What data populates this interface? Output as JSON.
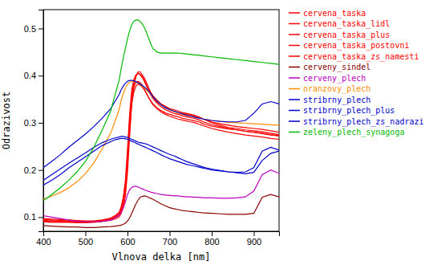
{
  "chart_data": {
    "type": "line",
    "xlabel": "Vlnova delka [nm]",
    "ylabel": "Odrazivost",
    "xlim": [
      400,
      960
    ],
    "ylim": [
      0.07,
      0.54
    ],
    "xticks": [
      400,
      500,
      600,
      700,
      800,
      900
    ],
    "yticks": [
      0.1,
      0.2,
      0.3,
      0.4,
      0.5
    ],
    "grid": false,
    "legend": "right",
    "x": [
      400,
      420,
      440,
      460,
      480,
      500,
      520,
      540,
      560,
      570,
      580,
      585,
      590,
      595,
      600,
      605,
      610,
      615,
      620,
      625,
      630,
      635,
      640,
      645,
      650,
      655,
      660,
      670,
      680,
      690,
      700,
      710,
      720,
      730,
      740,
      750,
      760,
      770,
      780,
      800,
      820,
      840,
      860,
      880,
      900,
      920,
      940,
      960
    ],
    "series": [
      {
        "name": "cervena_taska",
        "color": "#ff0000",
        "values": [
          0.092,
          0.091,
          0.091,
          0.09,
          0.09,
          0.09,
          0.09,
          0.091,
          0.093,
          0.096,
          0.1,
          0.108,
          0.12,
          0.145,
          0.195,
          0.27,
          0.34,
          0.375,
          0.398,
          0.408,
          0.408,
          0.402,
          0.395,
          0.385,
          0.375,
          0.365,
          0.358,
          0.348,
          0.34,
          0.335,
          0.33,
          0.328,
          0.325,
          0.322,
          0.32,
          0.318,
          0.316,
          0.312,
          0.308,
          0.3,
          0.295,
          0.29,
          0.288,
          0.285,
          0.283,
          0.281,
          0.278,
          0.275
        ]
      },
      {
        "name": "cervena_taska_lidl",
        "color": "#ff0000",
        "values": [
          0.093,
          0.092,
          0.091,
          0.091,
          0.09,
          0.09,
          0.09,
          0.092,
          0.095,
          0.098,
          0.104,
          0.112,
          0.128,
          0.158,
          0.215,
          0.295,
          0.358,
          0.385,
          0.4,
          0.405,
          0.403,
          0.398,
          0.39,
          0.38,
          0.37,
          0.362,
          0.355,
          0.345,
          0.338,
          0.332,
          0.328,
          0.325,
          0.322,
          0.32,
          0.318,
          0.316,
          0.314,
          0.312,
          0.308,
          0.302,
          0.298,
          0.295,
          0.292,
          0.29,
          0.288,
          0.286,
          0.283,
          0.28
        ]
      },
      {
        "name": "cervena_taska_plus",
        "color": "#ff0000",
        "values": [
          0.09,
          0.089,
          0.089,
          0.089,
          0.088,
          0.088,
          0.089,
          0.091,
          0.095,
          0.1,
          0.108,
          0.12,
          0.142,
          0.178,
          0.245,
          0.318,
          0.37,
          0.392,
          0.402,
          0.405,
          0.402,
          0.396,
          0.388,
          0.378,
          0.368,
          0.36,
          0.352,
          0.342,
          0.334,
          0.328,
          0.324,
          0.32,
          0.318,
          0.315,
          0.313,
          0.311,
          0.309,
          0.306,
          0.302,
          0.296,
          0.292,
          0.288,
          0.285,
          0.282,
          0.28,
          0.277,
          0.274,
          0.272
        ]
      },
      {
        "name": "cervena_taska_postovni",
        "color": "#ff0000",
        "values": [
          0.095,
          0.094,
          0.093,
          0.092,
          0.091,
          0.091,
          0.091,
          0.093,
          0.097,
          0.101,
          0.107,
          0.116,
          0.132,
          0.16,
          0.215,
          0.285,
          0.34,
          0.365,
          0.378,
          0.382,
          0.38,
          0.376,
          0.37,
          0.362,
          0.354,
          0.347,
          0.341,
          0.332,
          0.326,
          0.321,
          0.318,
          0.315,
          0.313,
          0.31,
          0.308,
          0.306,
          0.304,
          0.302,
          0.298,
          0.293,
          0.29,
          0.287,
          0.285,
          0.282,
          0.28,
          0.278,
          0.275,
          0.273
        ]
      },
      {
        "name": "cervena_taska_zs_namesti",
        "color": "#ff0000",
        "values": [
          0.097,
          0.096,
          0.095,
          0.094,
          0.093,
          0.092,
          0.092,
          0.094,
          0.098,
          0.103,
          0.11,
          0.122,
          0.14,
          0.17,
          0.228,
          0.302,
          0.355,
          0.376,
          0.386,
          0.388,
          0.385,
          0.38,
          0.372,
          0.363,
          0.354,
          0.346,
          0.339,
          0.33,
          0.323,
          0.318,
          0.314,
          0.311,
          0.308,
          0.306,
          0.304,
          0.302,
          0.3,
          0.297,
          0.294,
          0.288,
          0.284,
          0.28,
          0.277,
          0.274,
          0.272,
          0.27,
          0.267,
          0.265
        ]
      },
      {
        "name": "cerveny_sindel",
        "color": "#8b0000",
        "values": [
          0.082,
          0.081,
          0.08,
          0.079,
          0.079,
          0.078,
          0.078,
          0.079,
          0.08,
          0.081,
          0.082,
          0.083,
          0.085,
          0.087,
          0.092,
          0.098,
          0.108,
          0.118,
          0.128,
          0.136,
          0.142,
          0.144,
          0.145,
          0.144,
          0.142,
          0.14,
          0.138,
          0.133,
          0.128,
          0.124,
          0.12,
          0.118,
          0.116,
          0.114,
          0.113,
          0.112,
          0.111,
          0.11,
          0.109,
          0.108,
          0.107,
          0.106,
          0.106,
          0.106,
          0.108,
          0.142,
          0.148,
          0.143
        ]
      },
      {
        "name": "cerveny_plech",
        "color": "#bb00bb",
        "values": [
          0.103,
          0.1,
          0.097,
          0.094,
          0.091,
          0.09,
          0.09,
          0.091,
          0.094,
          0.098,
          0.104,
          0.11,
          0.12,
          0.132,
          0.148,
          0.158,
          0.163,
          0.165,
          0.165,
          0.164,
          0.162,
          0.16,
          0.158,
          0.156,
          0.155,
          0.153,
          0.152,
          0.15,
          0.148,
          0.147,
          0.146,
          0.145,
          0.145,
          0.144,
          0.143,
          0.143,
          0.142,
          0.142,
          0.141,
          0.141,
          0.14,
          0.14,
          0.141,
          0.143,
          0.155,
          0.19,
          0.2,
          0.193
        ]
      },
      {
        "name": "oranzovy_plech",
        "color": "#ff8c00",
        "values": [
          0.138,
          0.145,
          0.152,
          0.162,
          0.175,
          0.192,
          0.215,
          0.245,
          0.278,
          0.302,
          0.328,
          0.348,
          0.362,
          0.374,
          0.382,
          0.386,
          0.388,
          0.388,
          0.386,
          0.384,
          0.381,
          0.378,
          0.374,
          0.37,
          0.365,
          0.36,
          0.355,
          0.346,
          0.338,
          0.332,
          0.328,
          0.324,
          0.321,
          0.318,
          0.316,
          0.314,
          0.312,
          0.31,
          0.308,
          0.305,
          0.303,
          0.301,
          0.3,
          0.299,
          0.298,
          0.297,
          0.296,
          0.295
        ]
      },
      {
        "name": "stribrny_plech",
        "color": "#0000cc",
        "values": [
          0.178,
          0.19,
          0.202,
          0.214,
          0.225,
          0.236,
          0.248,
          0.258,
          0.265,
          0.268,
          0.27,
          0.271,
          0.271,
          0.27,
          0.269,
          0.267,
          0.265,
          0.263,
          0.261,
          0.259,
          0.258,
          0.257,
          0.256,
          0.255,
          0.253,
          0.251,
          0.249,
          0.245,
          0.241,
          0.237,
          0.233,
          0.23,
          0.226,
          0.222,
          0.218,
          0.215,
          0.212,
          0.209,
          0.206,
          0.202,
          0.199,
          0.196,
          0.194,
          0.192,
          0.195,
          0.22,
          0.235,
          0.24
        ]
      },
      {
        "name": "stribrny_plech_plus",
        "color": "#0000cc",
        "values": [
          0.205,
          0.218,
          0.232,
          0.248,
          0.262,
          0.276,
          0.292,
          0.31,
          0.33,
          0.345,
          0.36,
          0.37,
          0.378,
          0.384,
          0.388,
          0.39,
          0.39,
          0.389,
          0.387,
          0.385,
          0.382,
          0.379,
          0.376,
          0.372,
          0.368,
          0.362,
          0.356,
          0.346,
          0.338,
          0.332,
          0.328,
          0.325,
          0.322,
          0.319,
          0.316,
          0.314,
          0.312,
          0.31,
          0.308,
          0.305,
          0.303,
          0.302,
          0.302,
          0.305,
          0.32,
          0.34,
          0.345,
          0.34
        ]
      },
      {
        "name": "stribrny_plech_zs_nadrazi",
        "color": "#0000cc",
        "values": [
          0.168,
          0.178,
          0.19,
          0.204,
          0.216,
          0.228,
          0.24,
          0.252,
          0.26,
          0.264,
          0.266,
          0.267,
          0.267,
          0.266,
          0.265,
          0.263,
          0.261,
          0.259,
          0.257,
          0.255,
          0.253,
          0.251,
          0.249,
          0.247,
          0.245,
          0.243,
          0.241,
          0.237,
          0.232,
          0.228,
          0.224,
          0.221,
          0.218,
          0.215,
          0.212,
          0.21,
          0.208,
          0.206,
          0.204,
          0.2,
          0.198,
          0.196,
          0.195,
          0.196,
          0.205,
          0.24,
          0.248,
          0.242
        ]
      },
      {
        "name": "zeleny_plech_synagoga",
        "color": "#00bb00",
        "values": [
          0.135,
          0.148,
          0.162,
          0.178,
          0.196,
          0.218,
          0.248,
          0.285,
          0.325,
          0.358,
          0.39,
          0.415,
          0.438,
          0.458,
          0.478,
          0.495,
          0.508,
          0.515,
          0.518,
          0.518,
          0.515,
          0.51,
          0.502,
          0.492,
          0.48,
          0.468,
          0.458,
          0.45,
          0.448,
          0.448,
          0.448,
          0.448,
          0.448,
          0.447,
          0.446,
          0.445,
          0.444,
          0.443,
          0.442,
          0.44,
          0.438,
          0.436,
          0.434,
          0.432,
          0.43,
          0.428,
          0.426,
          0.424
        ]
      }
    ]
  }
}
